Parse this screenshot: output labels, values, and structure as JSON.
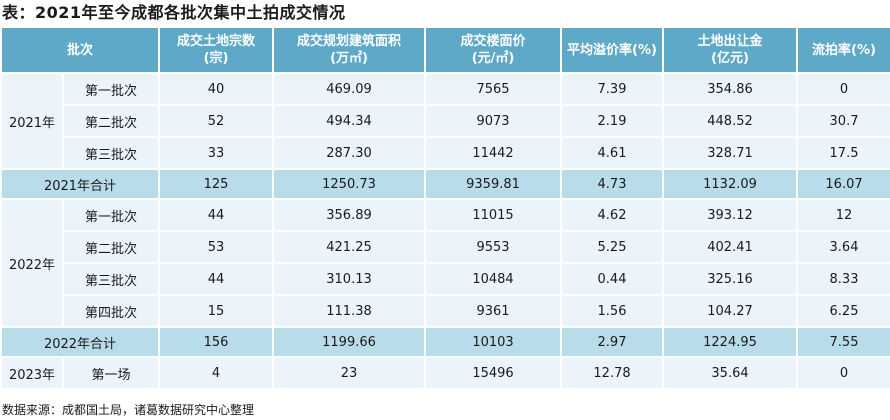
{
  "title": "表：2021年至今成都各批次集中土拍成交情况",
  "headers": [
    {
      "l1": "批次",
      "l2": ""
    },
    {
      "l1": "成交土地宗数",
      "l2": "(宗)"
    },
    {
      "l1": "成交规划建筑面积",
      "l2": "(万㎡)"
    },
    {
      "l1": "成交楼面价",
      "l2": "(元/㎡)"
    },
    {
      "l1": "平均溢价率(%)",
      "l2": ""
    },
    {
      "l1": "土地出让金",
      "l2": "(亿元)"
    },
    {
      "l1": "流拍率(%)",
      "l2": ""
    }
  ],
  "groups": [
    {
      "year": "2021年",
      "rows": [
        {
          "batch": "第一批次",
          "count": "40",
          "area": "469.09",
          "price": "7565",
          "premium": "7.39",
          "revenue": "354.86",
          "fail": "0"
        },
        {
          "batch": "第二批次",
          "count": "52",
          "area": "494.34",
          "price": "9073",
          "premium": "2.19",
          "revenue": "448.52",
          "fail": "30.7"
        },
        {
          "batch": "第三批次",
          "count": "33",
          "area": "287.30",
          "price": "11442",
          "premium": "4.61",
          "revenue": "328.71",
          "fail": "17.5"
        }
      ],
      "total": {
        "label": "2021年合计",
        "count": "125",
        "area": "1250.73",
        "price": "9359.81",
        "premium": "4.73",
        "revenue": "1132.09",
        "fail": "16.07"
      }
    },
    {
      "year": "2022年",
      "rows": [
        {
          "batch": "第一批次",
          "count": "44",
          "area": "356.89",
          "price": "11015",
          "premium": "4.62",
          "revenue": "393.12",
          "fail": "12"
        },
        {
          "batch": "第二批次",
          "count": "53",
          "area": "421.25",
          "price": "9553",
          "premium": "5.25",
          "revenue": "402.41",
          "fail": "3.64"
        },
        {
          "batch": "第三批次",
          "count": "44",
          "area": "310.13",
          "price": "10484",
          "premium": "0.44",
          "revenue": "325.16",
          "fail": "8.33"
        },
        {
          "batch": "第四批次",
          "count": "15",
          "area": "111.38",
          "price": "9361",
          "premium": "1.56",
          "revenue": "104.27",
          "fail": "6.25"
        }
      ],
      "total": {
        "label": "2022年合计",
        "count": "156",
        "area": "1199.66",
        "price": "10103",
        "premium": "2.97",
        "revenue": "1224.95",
        "fail": "7.55"
      }
    },
    {
      "year": "2023年",
      "rows": [
        {
          "batch": "第一场",
          "count": "4",
          "area": "23",
          "price": "15496",
          "premium": "12.78",
          "revenue": "35.64",
          "fail": "0"
        }
      ]
    }
  ],
  "source": "数据来源：成都国土局，诸葛数据研究中心整理"
}
